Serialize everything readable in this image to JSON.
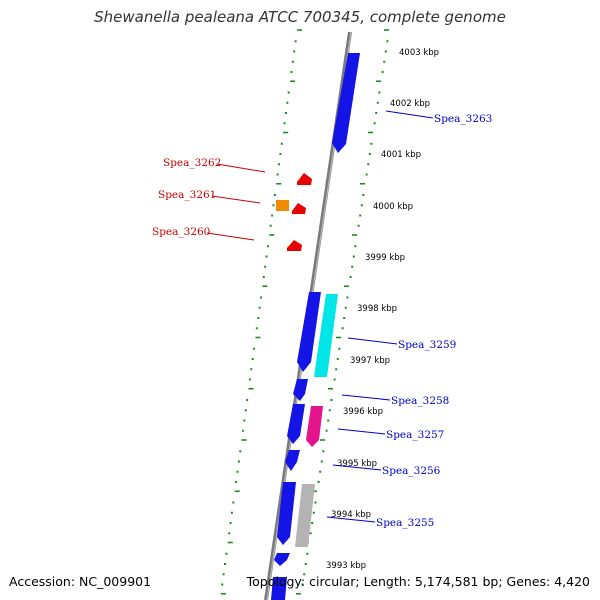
{
  "title": "Shewanella pealeana ATCC 700345, complete genome",
  "footer": {
    "accession": "Accession: NC_009901",
    "summary": "Topology: circular; Length: 5,174,581 bp; Genes: 4,420"
  },
  "colors": {
    "background": "#ffffff",
    "backbone": "#7a7a7a",
    "ruler_ticks": "#1f8a1f",
    "forward_label": "#0000cc",
    "reverse_label": "#cc0000",
    "gene_blue": "#1414e6",
    "gene_cyan": "#00e5e5",
    "gene_magenta": "#e6148c",
    "gene_gray": "#b4b4b4",
    "gene_red": "#e60000",
    "gene_orange": "#f08c00"
  },
  "ruler": {
    "unit": "kbp",
    "ticks": [
      "4003 kbp",
      "4002 kbp",
      "4001 kbp",
      "4000 kbp",
      "3999 kbp",
      "3998 kbp",
      "3997 kbp",
      "3996 kbp",
      "3995 kbp",
      "3994 kbp",
      "3993 kbp"
    ]
  },
  "gene_labels": {
    "forward": [
      "Spea_3263",
      "Spea_3259",
      "Spea_3258",
      "Spea_3257",
      "Spea_3256",
      "Spea_3255"
    ],
    "reverse": [
      "Spea_3262",
      "Spea_3261",
      "Spea_3260"
    ]
  }
}
